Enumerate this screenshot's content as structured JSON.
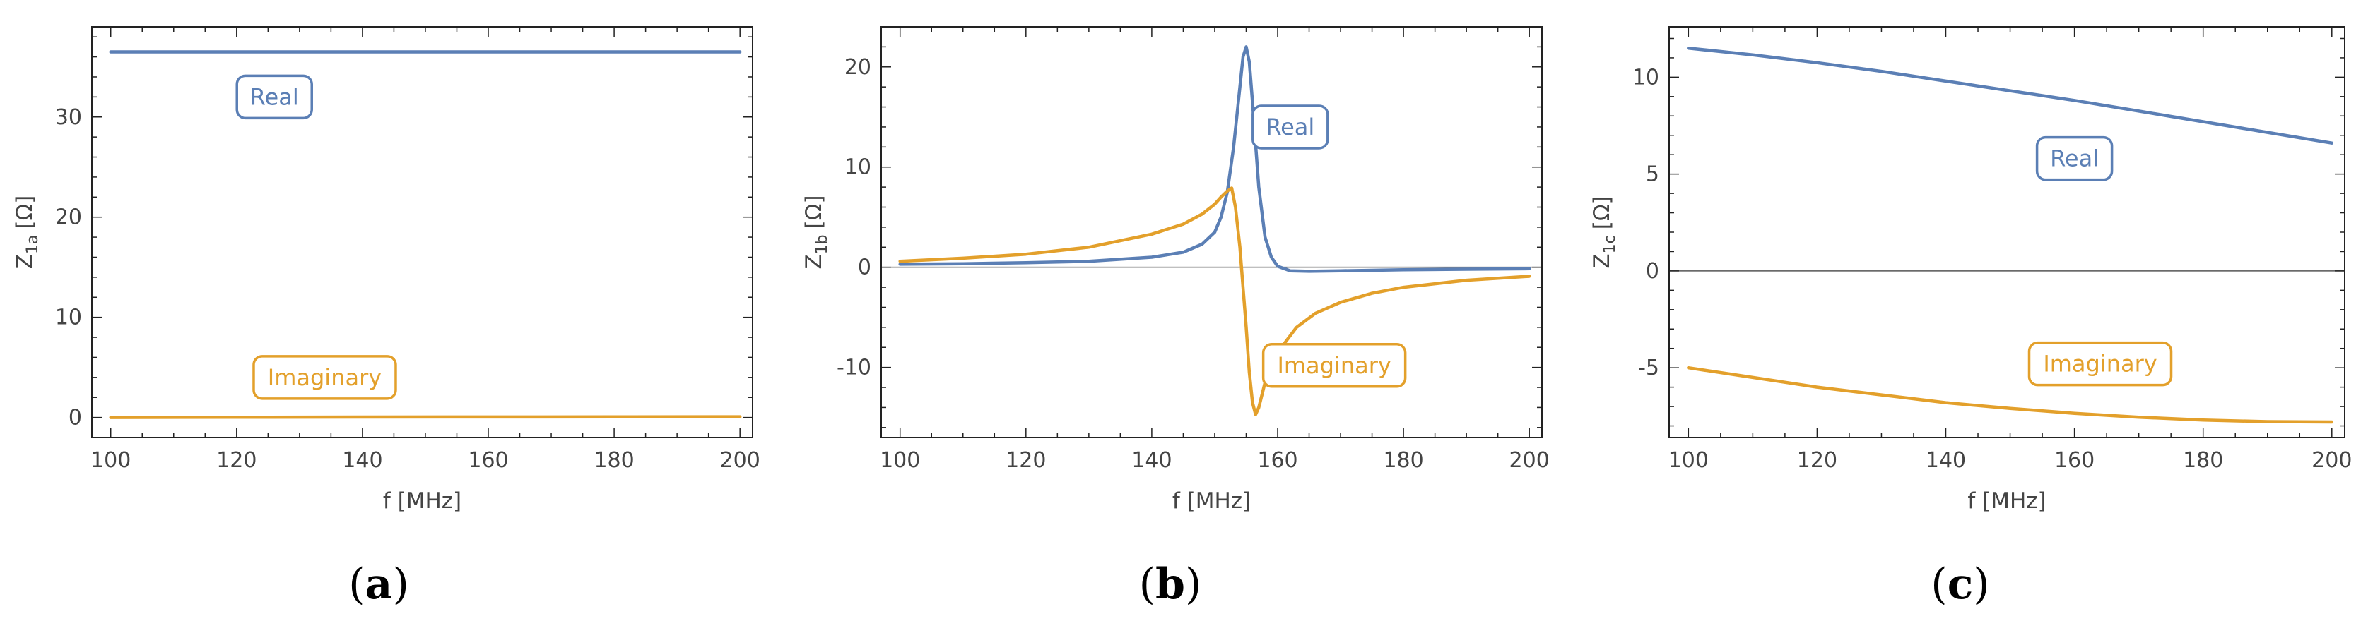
{
  "colors": {
    "real": "#5b7fb5",
    "imaginary": "#e3a02b",
    "frame": "#222222",
    "zero_line": "#555555"
  },
  "chart_data": [
    {
      "type": "line",
      "panel_label": "a",
      "xlabel": "f [MHz]",
      "ylabel": "Z",
      "ylabel_sub": "1a",
      "ylabel_unit": "[Ω]",
      "xlim": [
        97,
        202
      ],
      "ylim": [
        -2,
        39
      ],
      "xticks": [
        100,
        120,
        140,
        160,
        180,
        200
      ],
      "yticks": [
        0,
        10,
        20,
        30
      ],
      "zero_line": false,
      "series": [
        {
          "name": "Real",
          "x": [
            100,
            120,
            140,
            160,
            180,
            200
          ],
          "values": [
            36.5,
            36.5,
            36.5,
            36.5,
            36.5,
            36.5
          ]
        },
        {
          "name": "Imaginary",
          "x": [
            100,
            120,
            140,
            160,
            180,
            200
          ],
          "values": [
            0.0,
            0.02,
            0.04,
            0.05,
            0.06,
            0.07
          ]
        }
      ],
      "annotations": [
        {
          "text": "Real",
          "series": "Real",
          "x": 126,
          "y": 32
        },
        {
          "text": "Imaginary",
          "series": "Imaginary",
          "x": 134,
          "y": 4
        }
      ]
    },
    {
      "type": "line",
      "panel_label": "b",
      "xlabel": "f [MHz]",
      "ylabel": "Z",
      "ylabel_sub": "1b",
      "ylabel_unit": "[Ω]",
      "xlim": [
        97,
        202
      ],
      "ylim": [
        -17,
        24
      ],
      "xticks": [
        100,
        120,
        140,
        160,
        180,
        200
      ],
      "yticks": [
        -10,
        0,
        10,
        20
      ],
      "zero_line": true,
      "series": [
        {
          "name": "Real",
          "x": [
            100,
            110,
            120,
            130,
            140,
            145,
            148,
            150,
            151,
            152,
            153,
            154,
            154.5,
            155,
            155.5,
            156,
            157,
            158,
            159,
            160,
            162,
            165,
            170,
            180,
            190,
            200
          ],
          "values": [
            0.3,
            0.35,
            0.45,
            0.6,
            1.0,
            1.5,
            2.3,
            3.5,
            5.0,
            7.5,
            12.0,
            18.0,
            21.0,
            22.0,
            20.5,
            16.5,
            8.0,
            3.0,
            1.0,
            0.1,
            -0.35,
            -0.4,
            -0.35,
            -0.25,
            -0.2,
            -0.15
          ]
        },
        {
          "name": "Imaginary",
          "x": [
            100,
            110,
            120,
            130,
            140,
            145,
            148,
            150,
            151,
            152,
            152.7,
            153.3,
            154,
            154.5,
            155,
            155.5,
            156,
            156.5,
            157,
            158,
            160,
            163,
            166,
            170,
            175,
            180,
            190,
            200
          ],
          "values": [
            0.6,
            0.9,
            1.3,
            2.0,
            3.3,
            4.3,
            5.3,
            6.3,
            7.0,
            7.6,
            7.9,
            6.0,
            2.0,
            -2.0,
            -6.0,
            -10.5,
            -13.5,
            -14.7,
            -14.0,
            -11.5,
            -8.5,
            -6.0,
            -4.6,
            -3.5,
            -2.6,
            -2.0,
            -1.3,
            -0.9
          ]
        }
      ],
      "annotations": [
        {
          "text": "Real",
          "series": "Real",
          "x": 162,
          "y": 14
        },
        {
          "text": "Imaginary",
          "series": "Imaginary",
          "x": 169,
          "y": -9.8
        }
      ]
    },
    {
      "type": "line",
      "panel_label": "c",
      "xlabel": "f [MHz]",
      "ylabel": "Z",
      "ylabel_sub": "1c",
      "ylabel_unit": "[Ω]",
      "xlim": [
        97,
        202
      ],
      "ylim": [
        -8.6,
        12.6
      ],
      "xticks": [
        100,
        120,
        140,
        160,
        180,
        200
      ],
      "yticks": [
        -5,
        0,
        5,
        10
      ],
      "zero_line": true,
      "series": [
        {
          "name": "Real",
          "x": [
            100,
            110,
            120,
            130,
            140,
            150,
            160,
            170,
            180,
            190,
            200
          ],
          "values": [
            11.5,
            11.15,
            10.75,
            10.3,
            9.8,
            9.3,
            8.8,
            8.25,
            7.7,
            7.15,
            6.6
          ]
        },
        {
          "name": "Imaginary",
          "x": [
            100,
            110,
            120,
            130,
            140,
            150,
            160,
            170,
            180,
            190,
            200
          ],
          "values": [
            -5.0,
            -5.5,
            -6.0,
            -6.4,
            -6.8,
            -7.1,
            -7.35,
            -7.55,
            -7.7,
            -7.78,
            -7.8
          ]
        }
      ],
      "annotations": [
        {
          "text": "Real",
          "series": "Real",
          "x": 160,
          "y": 5.8
        },
        {
          "text": "Imaginary",
          "series": "Imaginary",
          "x": 164,
          "y": -4.8
        }
      ]
    }
  ]
}
